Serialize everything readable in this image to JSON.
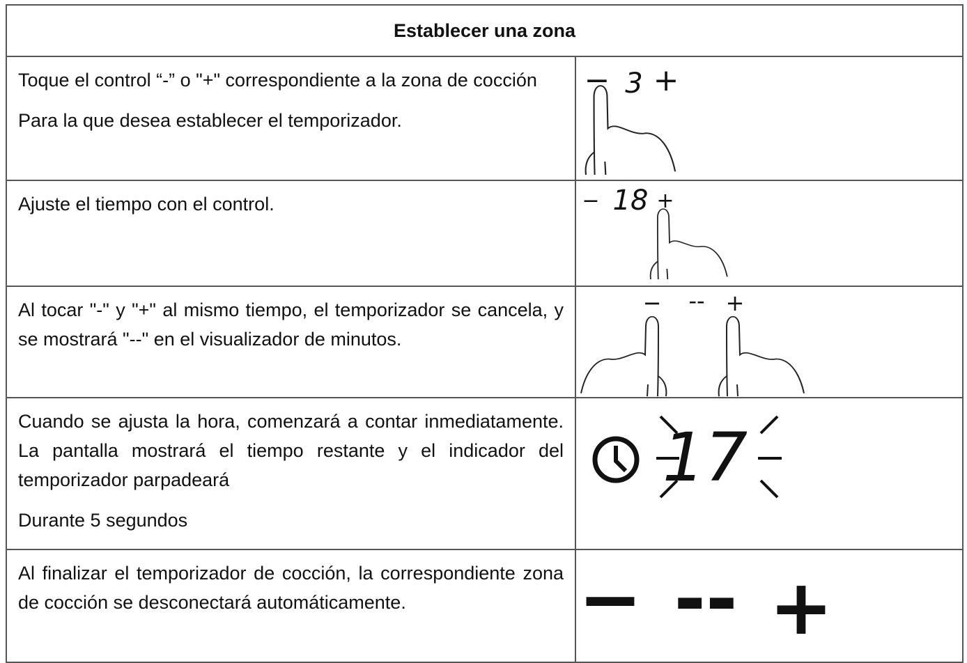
{
  "header": {
    "title": "Establecer una zona"
  },
  "rows": [
    {
      "paragraphs": [
        "Toque el control “-” o \"+\" correspondiente a la zona de cocción",
        "Para la que desea establecer el temporizador."
      ],
      "display": [
        "−",
        "3",
        "+"
      ]
    },
    {
      "paragraphs": [
        "Ajuste el tiempo con el control."
      ],
      "display": [
        "−",
        "18",
        "+"
      ]
    },
    {
      "paragraphs": [
        "Al tocar \"-\" y \"+\" al mismo tiempo, el temporizador se cancela, y se mostrará \"--\" en el visualizador de minutos."
      ],
      "display": [
        "−",
        "--",
        "+"
      ]
    },
    {
      "paragraphs": [
        "Cuando se ajusta la hora, comenzará a contar inmediatamente. La pantalla mostrará el tiempo restante y el indicador del temporizador parpadeará",
        "Durante 5 segundos"
      ],
      "display": [
        "17"
      ]
    },
    {
      "paragraphs": [
        "Al finalizar el temporizador de cocción, la correspondiente zona de cocción se desconectará automáticamente."
      ],
      "display": [
        "−",
        "--",
        "+"
      ]
    }
  ]
}
